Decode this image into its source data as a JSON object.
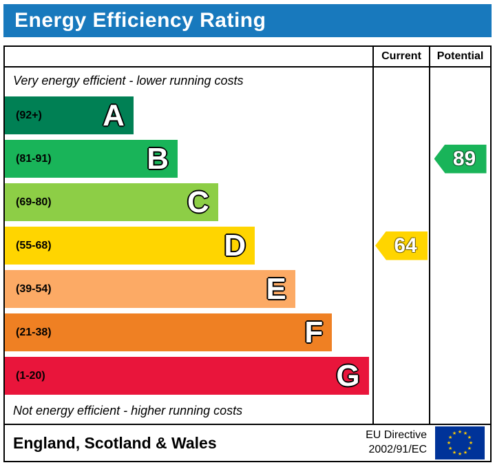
{
  "title": "Energy Efficiency Rating",
  "table": {
    "columns": [
      {
        "label": "Current"
      },
      {
        "label": "Potential"
      }
    ],
    "top_note": "Very energy efficient - lower running costs",
    "bottom_note": "Not energy efficient - higher running costs"
  },
  "chart_data": {
    "type": "bar",
    "title": "Energy Efficiency Rating",
    "scale_min": 1,
    "scale_max": 100,
    "bands": [
      {
        "letter": "A",
        "range_label": "(92+)",
        "min": 92,
        "max": 100,
        "color": "#008054",
        "width_pct": 35
      },
      {
        "letter": "B",
        "range_label": "(81-91)",
        "min": 81,
        "max": 91,
        "color": "#19b459",
        "width_pct": 47
      },
      {
        "letter": "C",
        "range_label": "(69-80)",
        "min": 69,
        "max": 80,
        "color": "#8dce46",
        "width_pct": 58
      },
      {
        "letter": "D",
        "range_label": "(55-68)",
        "min": 55,
        "max": 68,
        "color": "#ffd500",
        "width_pct": 68
      },
      {
        "letter": "E",
        "range_label": "(39-54)",
        "min": 39,
        "max": 54,
        "color": "#fcaa65",
        "width_pct": 79
      },
      {
        "letter": "F",
        "range_label": "(21-38)",
        "min": 21,
        "max": 38,
        "color": "#ef8023",
        "width_pct": 89
      },
      {
        "letter": "G",
        "range_label": "(1-20)",
        "min": 1,
        "max": 20,
        "color": "#e9153b",
        "width_pct": 99
      }
    ],
    "markers": {
      "current": {
        "label": "Current",
        "value": 64,
        "band": "D",
        "color": "#ffd500"
      },
      "potential": {
        "label": "Potential",
        "value": 89,
        "band": "B",
        "color": "#19b459"
      }
    }
  },
  "footer": {
    "region": "England, Scotland & Wales",
    "directive_line1": "EU Directive",
    "directive_line2": "2002/91/EC"
  },
  "icons": {
    "eu_star": "★"
  },
  "colors": {
    "title_bg": "#1879bd",
    "title_text": "#ffffff",
    "border": "#000000",
    "eu_flag_bg": "#003399",
    "eu_flag_stars": "#ffcc00"
  }
}
